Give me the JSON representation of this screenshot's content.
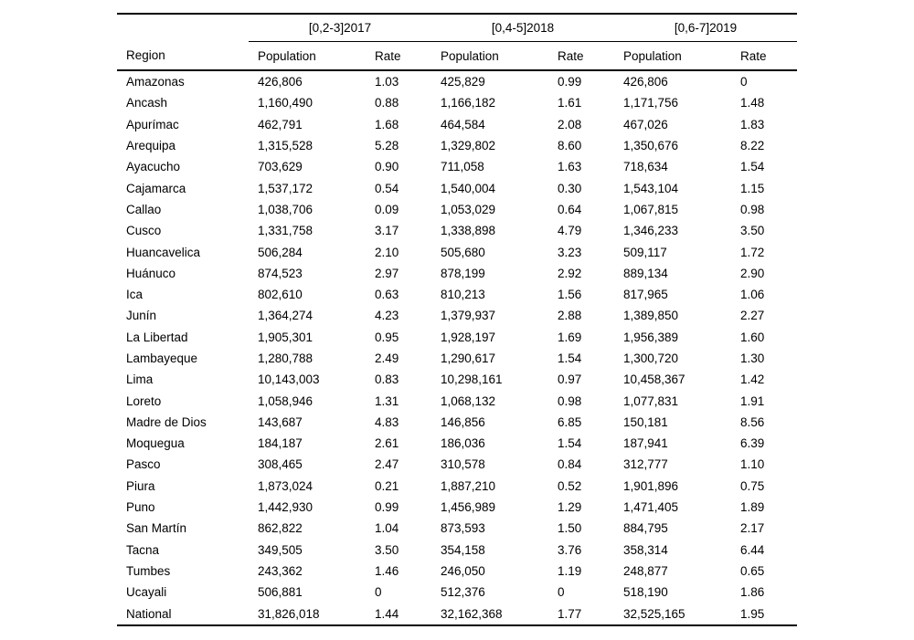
{
  "page": {
    "background": "#ffffff",
    "text_color": "#000000"
  },
  "table": {
    "spanners": [
      "[0,2-3]2017",
      "[0,4-5]2018",
      "[0,6-7]2019"
    ],
    "columns": {
      "region": "Region",
      "population": "Population",
      "rate": "Rate"
    },
    "rows": [
      [
        "Amazonas",
        "426,806",
        "1.03",
        "425,829",
        "0.99",
        "426,806",
        "0"
      ],
      [
        "Ancash",
        "1,160,490",
        "0.88",
        "1,166,182",
        "1.61",
        "1,171,756",
        "1.48"
      ],
      [
        "Apurímac",
        "462,791",
        "1.68",
        "464,584",
        "2.08",
        "467,026",
        "1.83"
      ],
      [
        "Arequipa",
        "1,315,528",
        "5.28",
        "1,329,802",
        "8.60",
        "1,350,676",
        "8.22"
      ],
      [
        "Ayacucho",
        "703,629",
        "0.90",
        "711,058",
        "1.63",
        "718,634",
        "1.54"
      ],
      [
        "Cajamarca",
        "1,537,172",
        "0.54",
        "1,540,004",
        "0.30",
        "1,543,104",
        "1.15"
      ],
      [
        "Callao",
        "1,038,706",
        "0.09",
        "1,053,029",
        "0.64",
        "1,067,815",
        "0.98"
      ],
      [
        "Cusco",
        "1,331,758",
        "3.17",
        "1,338,898",
        "4.79",
        "1,346,233",
        "3.50"
      ],
      [
        "Huancavelica",
        "506,284",
        "2.10",
        "505,680",
        "3.23",
        "509,117",
        "1.72"
      ],
      [
        "Huánuco",
        "874,523",
        "2.97",
        "878,199",
        "2.92",
        "889,134",
        "2.90"
      ],
      [
        "Ica",
        "802,610",
        "0.63",
        "810,213",
        "1.56",
        "817,965",
        "1.06"
      ],
      [
        "Junín",
        "1,364,274",
        "4.23",
        "1,379,937",
        "2.88",
        "1,389,850",
        "2.27"
      ],
      [
        "La Libertad",
        "1,905,301",
        "0.95",
        "1,928,197",
        "1.69",
        "1,956,389",
        "1.60"
      ],
      [
        "Lambayeque",
        "1,280,788",
        "2.49",
        "1,290,617",
        "1.54",
        "1,300,720",
        "1.30"
      ],
      [
        "Lima",
        "10,143,003",
        "0.83",
        "10,298,161",
        "0.97",
        "10,458,367",
        "1.42"
      ],
      [
        "Loreto",
        "1,058,946",
        "1.31",
        "1,068,132",
        "0.98",
        "1,077,831",
        "1.91"
      ],
      [
        "Madre de Dios",
        "143,687",
        "4.83",
        "146,856",
        "6.85",
        "150,181",
        "8.56"
      ],
      [
        "Moquegua",
        "184,187",
        "2.61",
        "186,036",
        "1.54",
        "187,941",
        "6.39"
      ],
      [
        "Pasco",
        "308,465",
        "2.47",
        "310,578",
        "0.84",
        "312,777",
        "1.10"
      ],
      [
        "Piura",
        "1,873,024",
        "0.21",
        "1,887,210",
        "0.52",
        "1,901,896",
        "0.75"
      ],
      [
        "Puno",
        "1,442,930",
        "0.99",
        "1,456,989",
        "1.29",
        "1,471,405",
        "1.89"
      ],
      [
        "San Martín",
        "862,822",
        "1.04",
        "873,593",
        "1.50",
        "884,795",
        "2.17"
      ],
      [
        "Tacna",
        "349,505",
        "3.50",
        "354,158",
        "3.76",
        "358,314",
        "6.44"
      ],
      [
        "Tumbes",
        "243,362",
        "1.46",
        "246,050",
        "1.19",
        "248,877",
        "0.65"
      ],
      [
        "Ucayali",
        "506,881",
        "0",
        "512,376",
        "0",
        "518,190",
        "1.86"
      ],
      [
        "National",
        "31,826,018",
        "1.44",
        "32,162,368",
        "1.77",
        "32,525,165",
        "1.95"
      ]
    ]
  }
}
